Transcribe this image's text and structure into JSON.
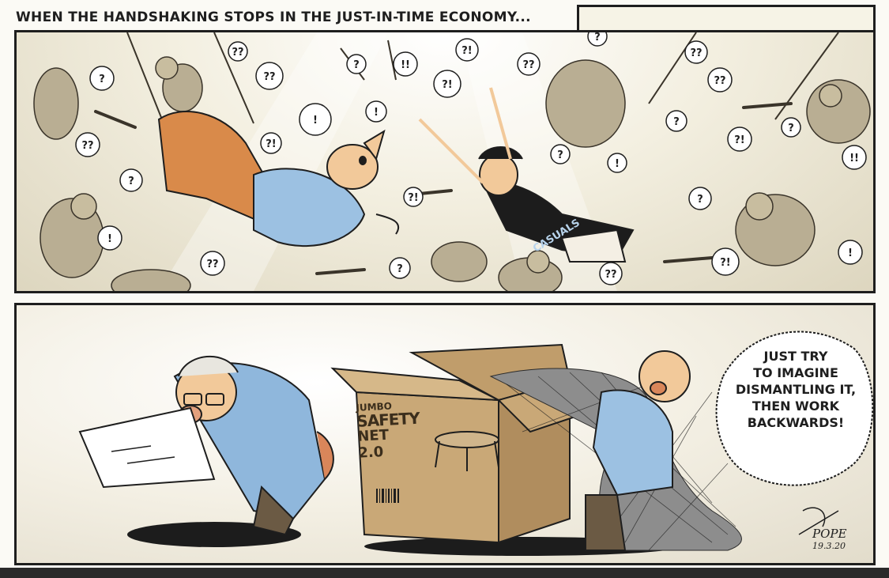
{
  "caption": "WHEN THE HANDSHAKING STOPS IN THE JUST-IN-TIME ECONOMY...",
  "shirt_text": "CASUALS",
  "box": {
    "line1": "JUMBO",
    "line2": "SAFETY",
    "line3": "NET",
    "line4": "2.0"
  },
  "speech_lines": [
    "JUST TRY",
    "TO IMAGINE",
    "DISMANTLING IT,",
    "THEN WORK",
    "BACKWARDS!"
  ],
  "signature": "POPE",
  "date": "19.3.20",
  "bubbles": [
    "?",
    "??",
    "!",
    "?!",
    "!!",
    "??",
    "?",
    "?!",
    "!",
    "??",
    "?",
    "?!",
    "??",
    "?",
    "!",
    "?",
    "??",
    "?!",
    "?",
    "!!",
    "??",
    "?",
    "?!",
    "!",
    "??",
    "?",
    "?!",
    "??",
    "!",
    "?"
  ],
  "colors": {
    "ink": "#1e1e1e",
    "paper": "#f3efe0",
    "cardboard": "#c9a877",
    "shirt_blue": "#9cc1e2",
    "trousers": "#d98a4a"
  }
}
